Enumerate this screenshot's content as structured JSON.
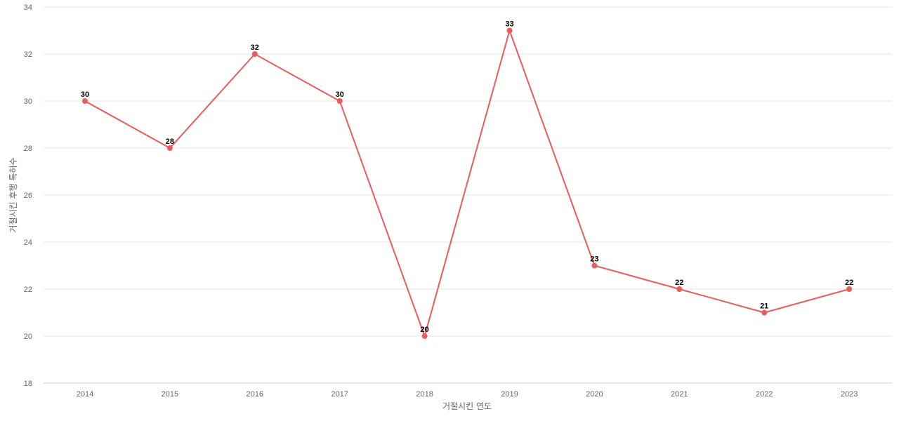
{
  "chart_data": {
    "type": "line",
    "title": "",
    "xlabel": "거절시킨 연도",
    "ylabel": "거절시킨 후행 특허수",
    "categories": [
      "2014",
      "2015",
      "2016",
      "2017",
      "2018",
      "2019",
      "2020",
      "2021",
      "2022",
      "2023"
    ],
    "series": [
      {
        "values": [
          30,
          28,
          32,
          30,
          20,
          33,
          23,
          22,
          21,
          22
        ],
        "color": "#e85c5c"
      }
    ],
    "ylim": [
      18,
      34
    ],
    "yticks": [
      18,
      20,
      22,
      24,
      26,
      28,
      30,
      32,
      34
    ],
    "grid": true,
    "legend": "none",
    "data_labels": true
  }
}
